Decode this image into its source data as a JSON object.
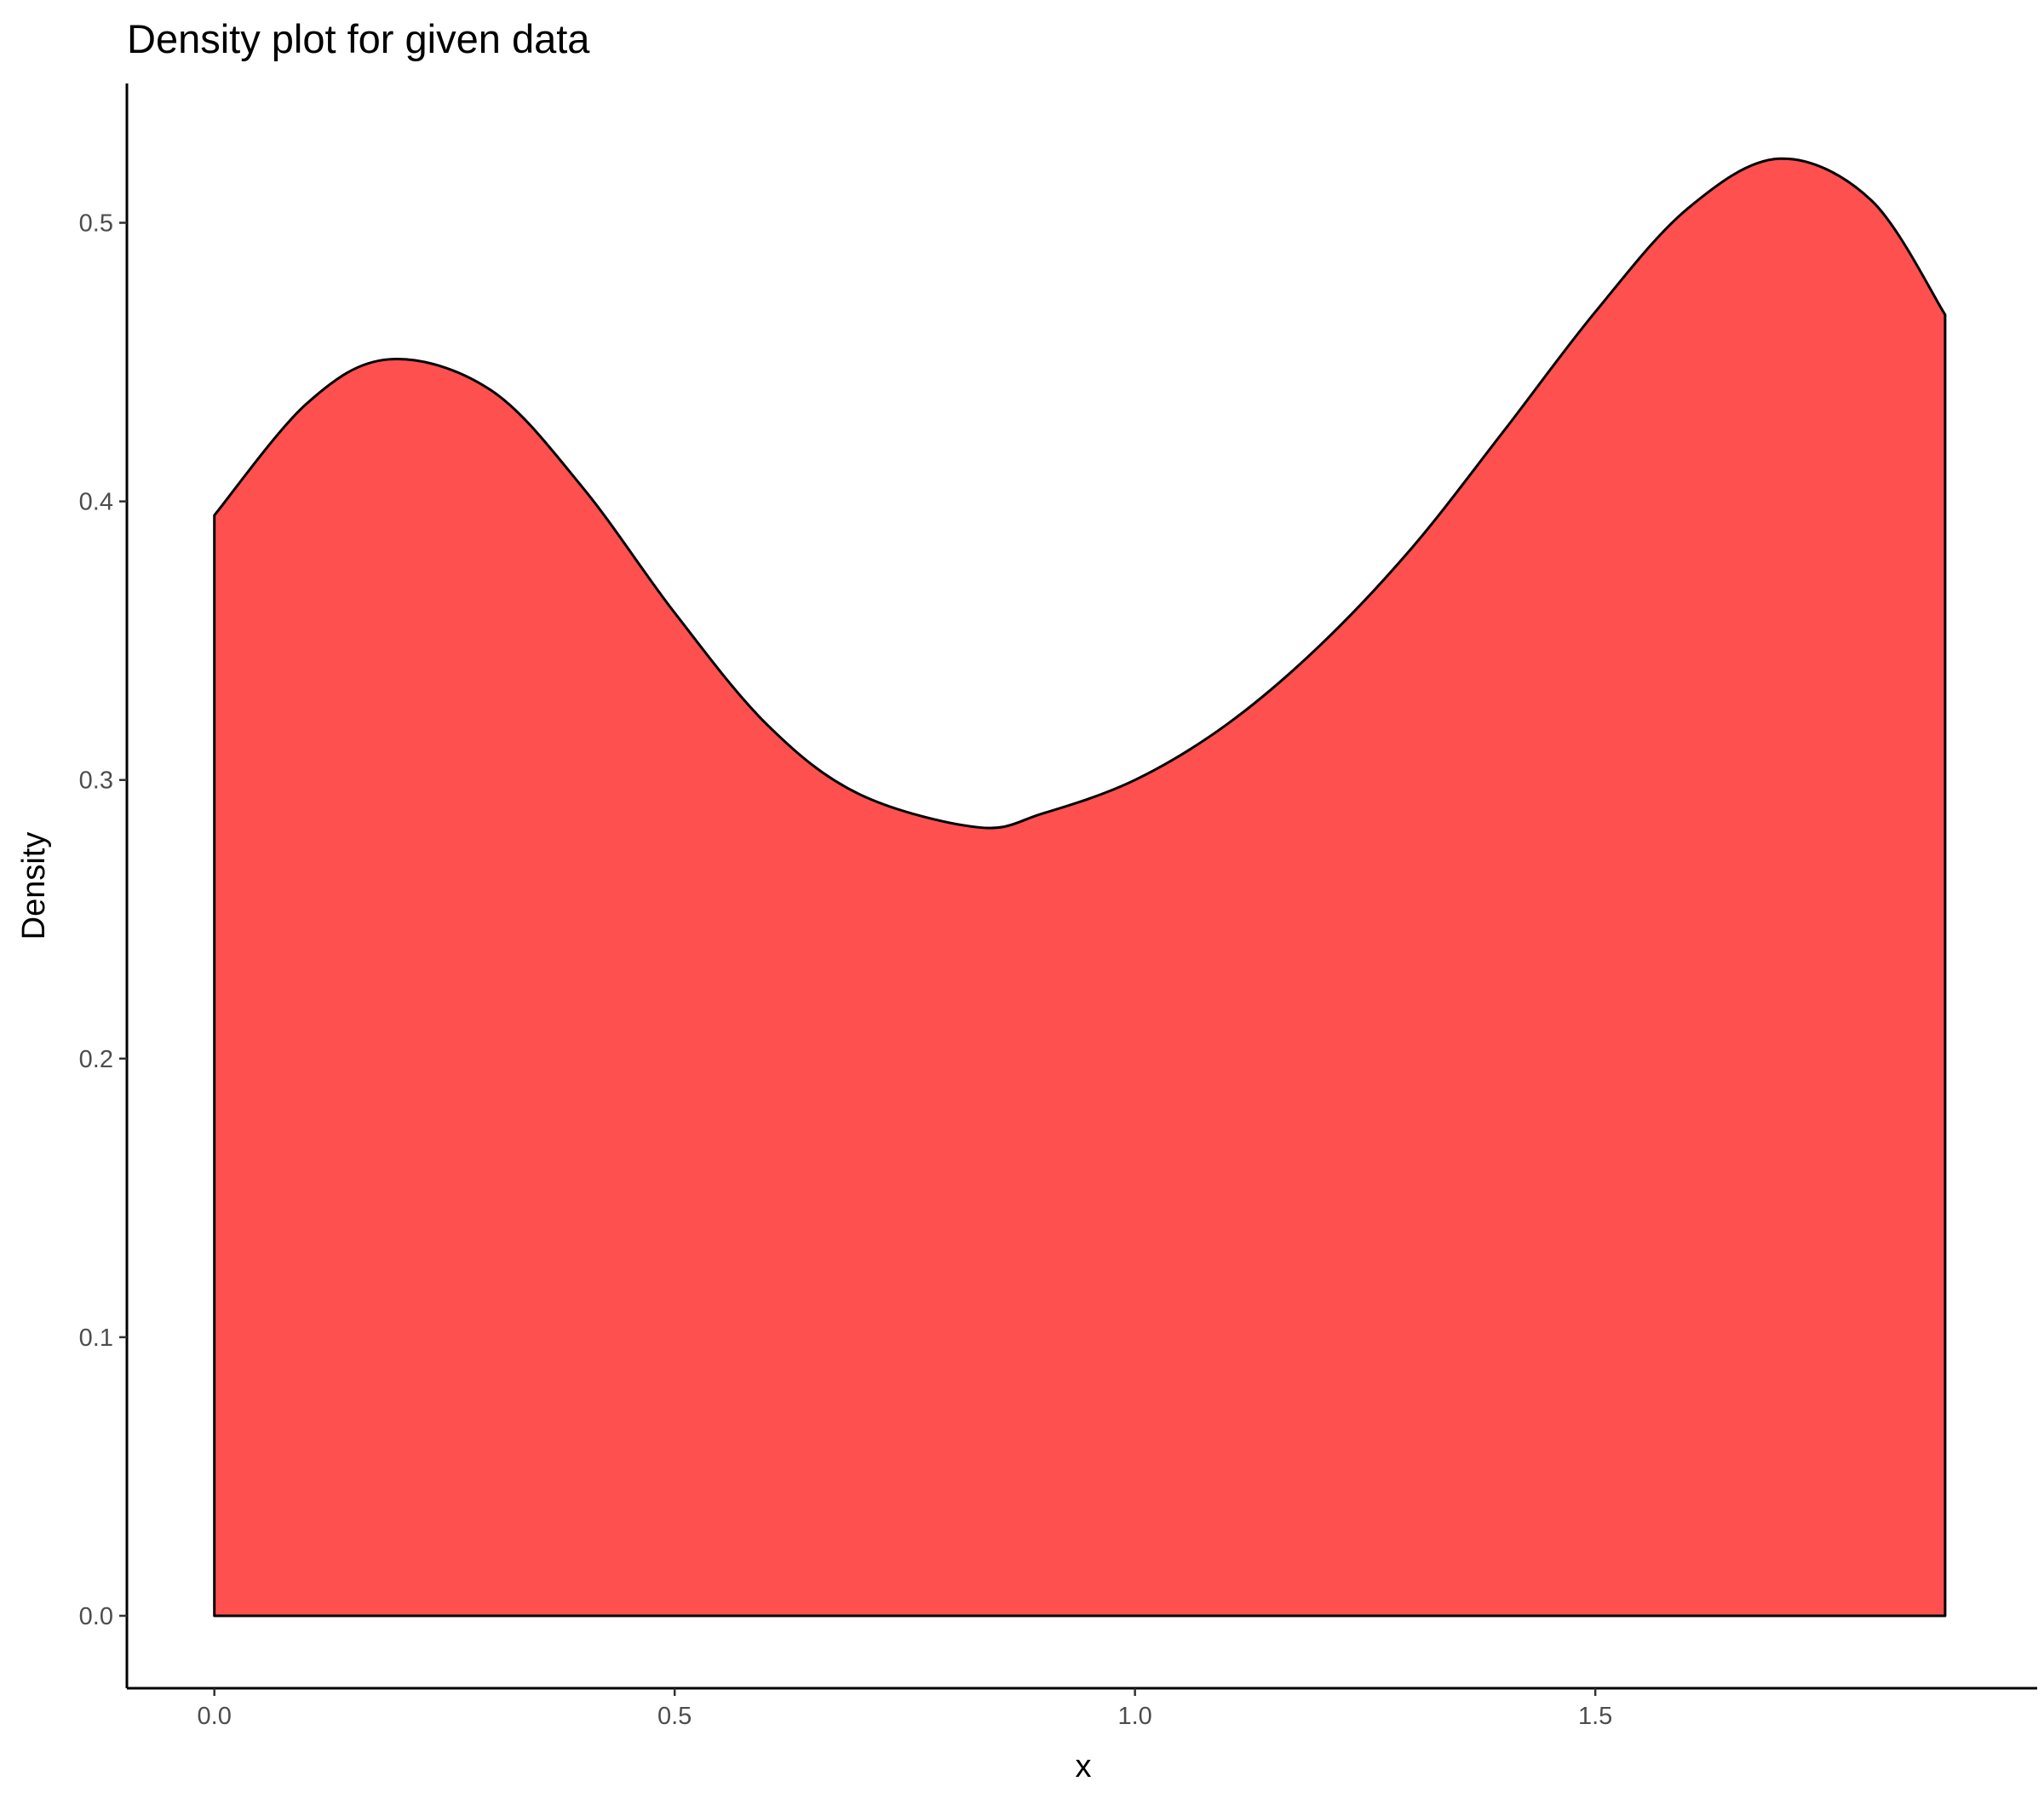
{
  "chart_data": {
    "type": "area",
    "title": "Density plot for given data",
    "xlabel": "x",
    "ylabel": "Density",
    "xlim": [
      -0.095,
      1.98
    ],
    "ylim": [
      -0.026,
      0.55
    ],
    "x_ticks": [
      0.0,
      0.5,
      1.0,
      1.5
    ],
    "x_tick_labels": [
      "0.0",
      "0.5",
      "1.0",
      "1.5"
    ],
    "y_ticks": [
      0.0,
      0.1,
      0.2,
      0.3,
      0.4,
      0.5
    ],
    "y_tick_labels": [
      "0.0",
      "0.1",
      "0.2",
      "0.3",
      "0.4",
      "0.5"
    ],
    "grid": false,
    "legend": "none",
    "fill_color": "#ff5050",
    "outline_color": "#000000",
    "series": [
      {
        "x": [
          0.0,
          0.1,
          0.19,
          0.3,
          0.4,
          0.5,
          0.6,
          0.7,
          0.83,
          0.9,
          1.0,
          1.1,
          1.2,
          1.3,
          1.4,
          1.5,
          1.6,
          1.7,
          1.8,
          1.88
        ],
        "y": [
          0.395,
          0.435,
          0.451,
          0.44,
          0.405,
          0.36,
          0.32,
          0.295,
          0.283,
          0.288,
          0.3,
          0.32,
          0.348,
          0.383,
          0.425,
          0.468,
          0.505,
          0.523,
          0.508,
          0.467
        ]
      }
    ]
  }
}
